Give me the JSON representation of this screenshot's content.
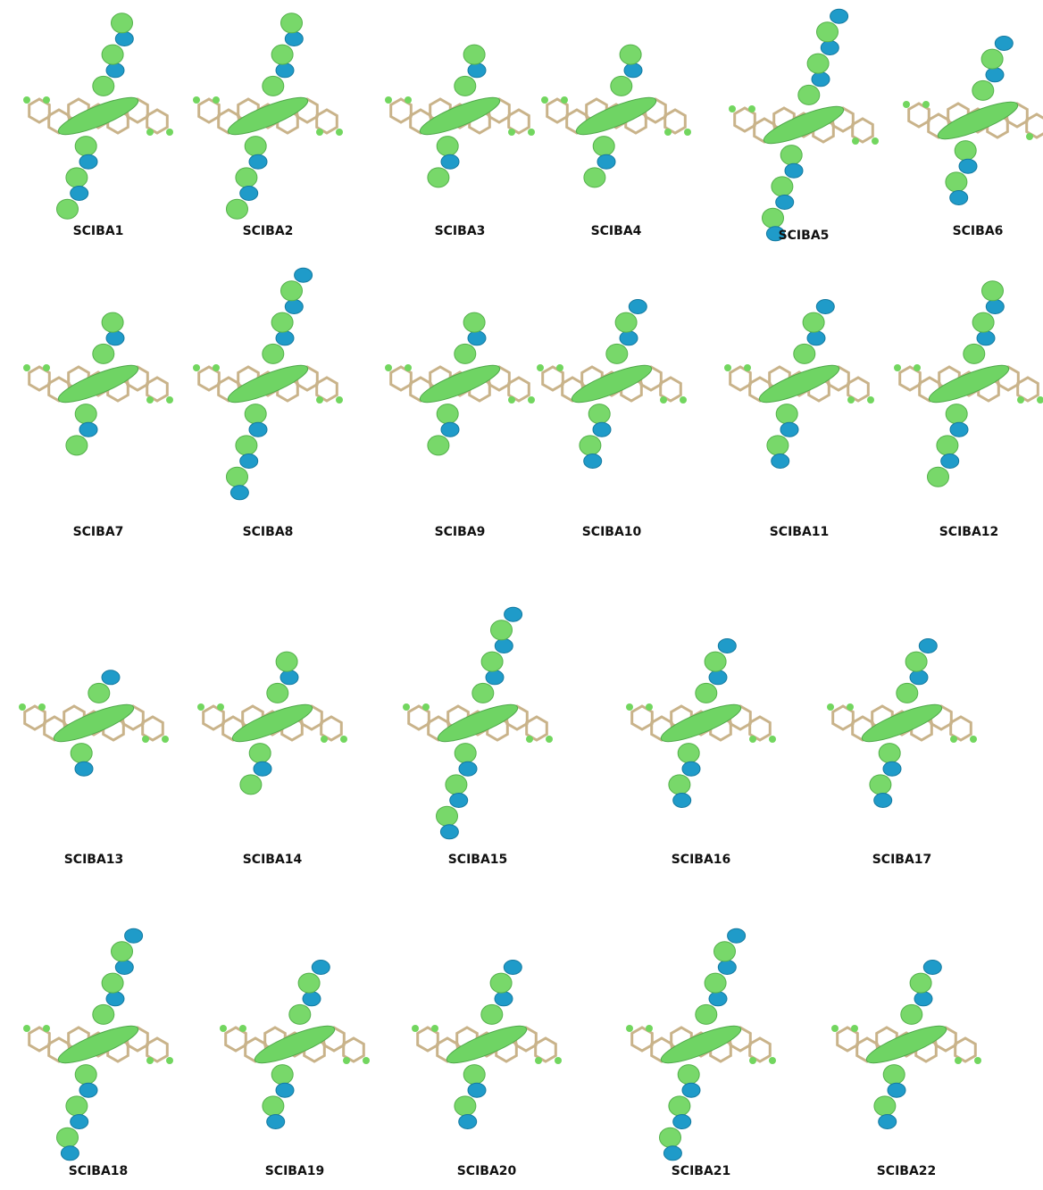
{
  "figure": {
    "labels": [
      "SCIBA1",
      "SCIBA2",
      "SCIBA3",
      "SCIBA4",
      "SCIBA5",
      "SCIBA6",
      "SCIBA7",
      "SCIBA8",
      "SCIBA9",
      "SCIBA10",
      "SCIBA11",
      "SCIBA12",
      "SCIBA13",
      "SCIBA14",
      "SCIBA15",
      "SCIBA16",
      "SCIBA17",
      "SCIBA18",
      "SCIBA19",
      "SCIBA20",
      "SCIBA21",
      "SCIBA22"
    ]
  }
}
